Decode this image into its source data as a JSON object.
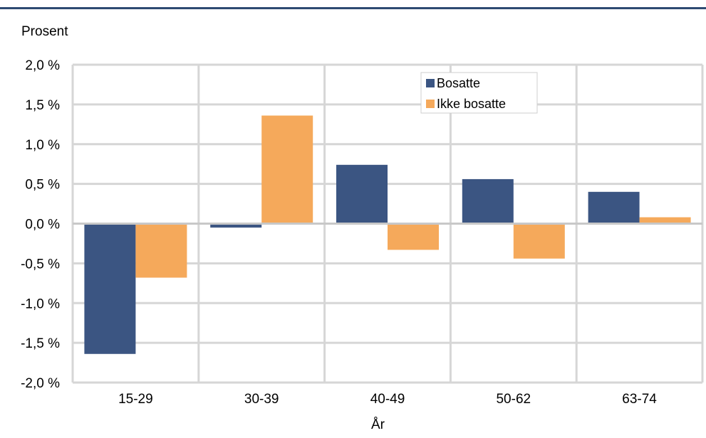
{
  "chart_data": {
    "type": "bar",
    "ylabel": "Prosent",
    "xlabel": "År",
    "ylim": [
      -2.0,
      2.0
    ],
    "yticks": [
      2.0,
      1.5,
      1.0,
      0.5,
      0.0,
      -0.5,
      -1.0,
      -1.5,
      -2.0
    ],
    "ytick_labels": [
      "2,0 %",
      "1,5 %",
      "1,0 %",
      "0,5 %",
      "0,0 %",
      "-0,5 %",
      "-1,0 %",
      "-1,5 %",
      "-2,0 %"
    ],
    "categories": [
      "15-29",
      "30-39",
      "40-49",
      "50-62",
      "63-74"
    ],
    "series": [
      {
        "name": "Bosatte",
        "color": "#3b5582",
        "values": [
          -1.64,
          -0.05,
          0.74,
          0.56,
          0.4
        ]
      },
      {
        "name": "Ikke bosatte",
        "color": "#f5a95b",
        "values": [
          -0.68,
          1.36,
          -0.33,
          -0.44,
          0.08
        ]
      }
    ],
    "grid": true,
    "legend_position": "top-right"
  }
}
